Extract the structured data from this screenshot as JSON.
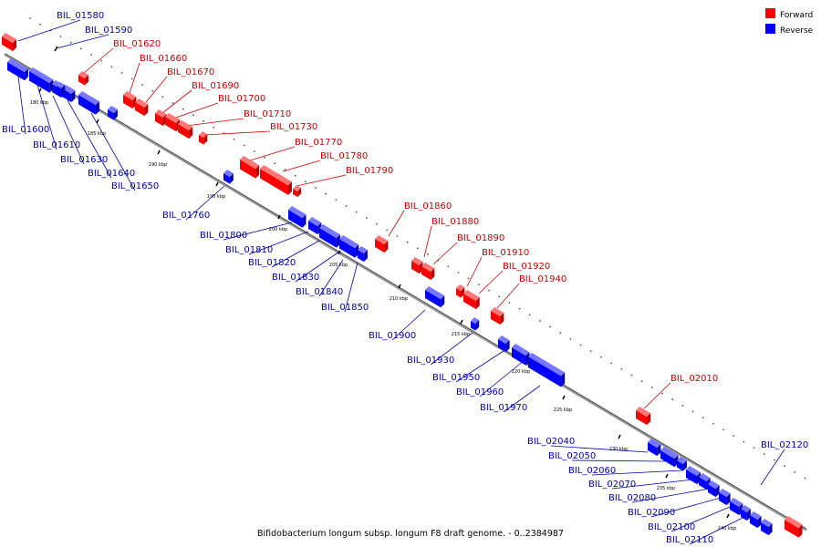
{
  "title": "Bifidobacterium longum subsp. longum F8 draft genome. - 0..2384987",
  "legend": [
    {
      "name": "Forward",
      "color": "#ff0000"
    },
    {
      "name": "Reverse",
      "color": "#0000ff"
    }
  ],
  "colors": {
    "forward": "#ff0000",
    "reverse": "#0000ff",
    "axis": "#888888"
  },
  "ticks": [
    "180 kbp",
    "185 kbp",
    "190 kbp",
    "195 kbp",
    "200 kbp",
    "205 kbp",
    "210 kbp",
    "215 kbp",
    "220 kbp",
    "225 kbp",
    "230 kbp",
    "235 kbp",
    "240 kbp"
  ],
  "genes": [
    {
      "id": "BIL_01580",
      "strand": "reverse"
    },
    {
      "id": "BIL_01590",
      "strand": "reverse"
    },
    {
      "id": "BIL_01600",
      "strand": "reverse"
    },
    {
      "id": "BIL_01610",
      "strand": "reverse"
    },
    {
      "id": "BIL_01620",
      "strand": "forward"
    },
    {
      "id": "BIL_01630",
      "strand": "reverse"
    },
    {
      "id": "BIL_01640",
      "strand": "reverse"
    },
    {
      "id": "BIL_01650",
      "strand": "reverse"
    },
    {
      "id": "BIL_01660",
      "strand": "forward"
    },
    {
      "id": "BIL_01670",
      "strand": "forward"
    },
    {
      "id": "BIL_01690",
      "strand": "forward"
    },
    {
      "id": "BIL_01700",
      "strand": "forward"
    },
    {
      "id": "BIL_01710",
      "strand": "forward"
    },
    {
      "id": "BIL_01730",
      "strand": "forward"
    },
    {
      "id": "BIL_01760",
      "strand": "reverse"
    },
    {
      "id": "BIL_01770",
      "strand": "forward"
    },
    {
      "id": "BIL_01780",
      "strand": "forward"
    },
    {
      "id": "BIL_01790",
      "strand": "forward"
    },
    {
      "id": "BIL_01800",
      "strand": "reverse"
    },
    {
      "id": "BIL_01810",
      "strand": "reverse"
    },
    {
      "id": "BIL_01820",
      "strand": "reverse"
    },
    {
      "id": "BIL_01830",
      "strand": "reverse"
    },
    {
      "id": "BIL_01840",
      "strand": "reverse"
    },
    {
      "id": "BIL_01850",
      "strand": "reverse"
    },
    {
      "id": "BIL_01860",
      "strand": "forward"
    },
    {
      "id": "BIL_01880",
      "strand": "forward"
    },
    {
      "id": "BIL_01890",
      "strand": "forward"
    },
    {
      "id": "BIL_01900",
      "strand": "reverse"
    },
    {
      "id": "BIL_01910",
      "strand": "forward"
    },
    {
      "id": "BIL_01920",
      "strand": "forward"
    },
    {
      "id": "BIL_01930",
      "strand": "reverse"
    },
    {
      "id": "BIL_01940",
      "strand": "forward"
    },
    {
      "id": "BIL_01950",
      "strand": "reverse"
    },
    {
      "id": "BIL_01960",
      "strand": "reverse"
    },
    {
      "id": "BIL_01970",
      "strand": "reverse"
    },
    {
      "id": "BIL_02010",
      "strand": "forward"
    },
    {
      "id": "BIL_02040",
      "strand": "reverse"
    },
    {
      "id": "BIL_02050",
      "strand": "reverse"
    },
    {
      "id": "BIL_02060",
      "strand": "reverse"
    },
    {
      "id": "BIL_02070",
      "strand": "reverse"
    },
    {
      "id": "BIL_02080",
      "strand": "reverse"
    },
    {
      "id": "BIL_02090",
      "strand": "reverse"
    },
    {
      "id": "BIL_02100",
      "strand": "reverse"
    },
    {
      "id": "BIL_02110",
      "strand": "reverse"
    },
    {
      "id": "BIL_02120",
      "strand": "reverse"
    }
  ]
}
